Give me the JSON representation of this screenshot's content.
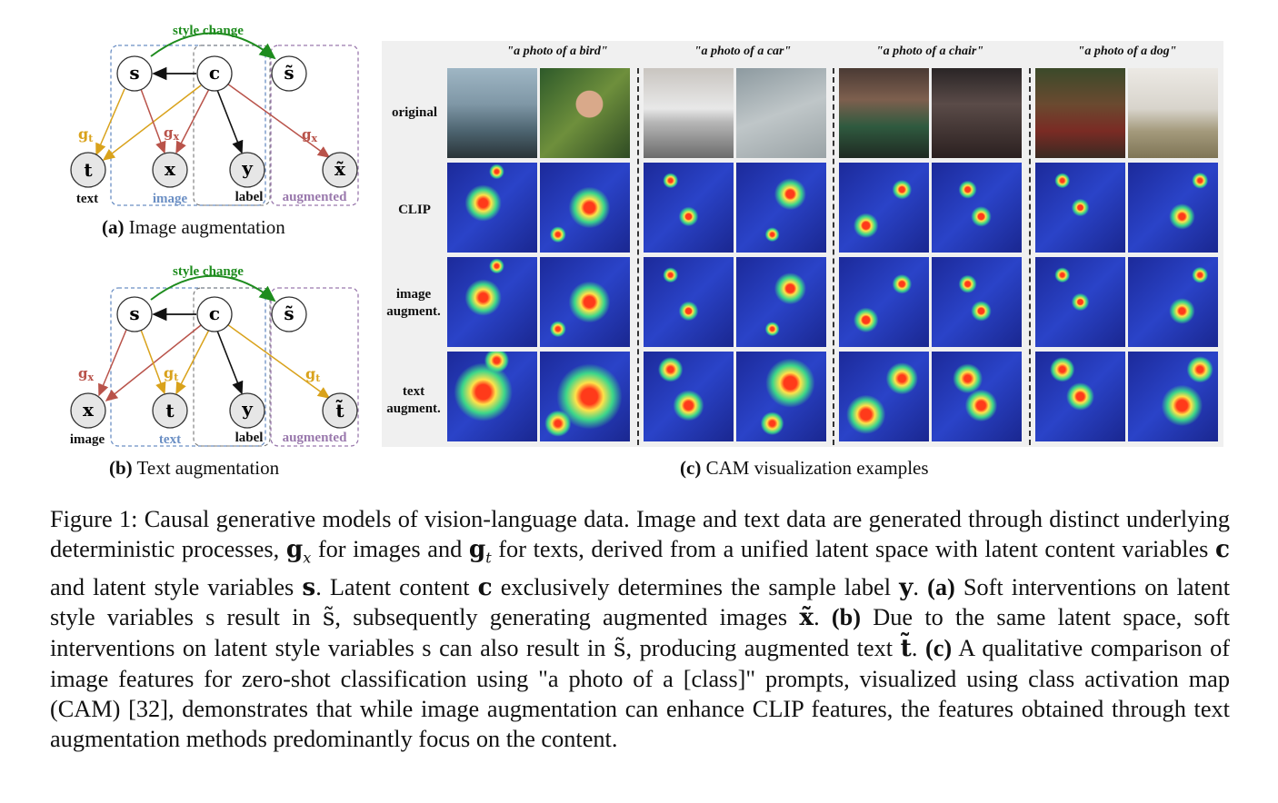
{
  "diagram_a": {
    "style_change": "style change",
    "nodes": {
      "s": "s",
      "c": "c",
      "s_tilde": "s̃",
      "t": "t",
      "x": "x",
      "y": "y",
      "x_tilde": "x̃"
    },
    "edge_labels": {
      "g_t": "g",
      "g_t_sub": "t",
      "g_x": "g",
      "g_x_sub": "x",
      "g_x2": "g",
      "g_x2_sub": "x"
    },
    "node_captions": {
      "text": "text",
      "image": "image",
      "label": "label",
      "augmented": "augmented"
    },
    "caption_bold": "(a)",
    "caption_text": " Image augmentation"
  },
  "diagram_b": {
    "style_change": "style change",
    "nodes": {
      "s": "s",
      "c": "c",
      "s_tilde": "s̃",
      "x": "x",
      "t": "t",
      "y": "y",
      "t_tilde": "t̃"
    },
    "edge_labels": {
      "g_x": "g",
      "g_x_sub": "x",
      "g_t": "g",
      "g_t_sub": "t",
      "g_t2": "g",
      "g_t2_sub": "t"
    },
    "node_captions": {
      "image": "image",
      "text": "text",
      "label": "label",
      "augmented": "augmented"
    },
    "caption_bold": "(b)",
    "caption_text": " Text augmentation"
  },
  "cam": {
    "columns": [
      "\"a photo of a bird\"",
      "\"a photo of a car\"",
      "\"a photo of a chair\"",
      "\"a photo of a dog\""
    ],
    "rows": [
      "original",
      "CLIP",
      "image augment.",
      "text augment."
    ],
    "caption_bold": "(c)",
    "caption_text": " CAM visualization examples"
  },
  "colors": {
    "style_change": "#1e8c1e",
    "g_t": "#d9a21b",
    "g_x": "#b9534a",
    "box_blue": "#6b8fc4",
    "box_purple": "#9a79ad",
    "image_label": "#6b8fc4",
    "augmented_label": "#9a79ad"
  },
  "figure_caption": {
    "p1": "Figure 1: Causal generative models of vision-language data. Image and text data are generated through distinct underlying deterministic processes, ",
    "gx": "g",
    "gx_sub": "x",
    "p2": " for images and ",
    "gt": "g",
    "gt_sub": "t",
    "p3": " for texts, derived from a unified latent space with latent content variables ",
    "c1": "c",
    "p4": " and latent style variables ",
    "s1": "s",
    "p5": ". Latent content ",
    "c2": "c",
    "p6": " exclusively determines the sample label ",
    "y1": "y",
    "p7": ". ",
    "a_bold": "(a)",
    "p8": " Soft interventions on latent style variables s result in ",
    "st1": "s̃",
    "p9": ", subsequently generating augmented images ",
    "xt1": "x̃",
    "p10": ". ",
    "b_bold": "(b)",
    "p11": " Due to the same latent space, soft interventions on latent style variables s can also result in ",
    "st2": "s̃",
    "p12": ", producing augmented text ",
    "tt1": "t̃",
    "p13": ". ",
    "c_bold": "(c)",
    "p14": " A qualitative comparison of image features for zero-shot classification using \"a photo of a [class]\" prompts, visualized using class activation map (CAM) [32], demonstrates that while image augmentation can enhance CLIP features, the features obtained through text augmentation methods predominantly focus on the content."
  }
}
